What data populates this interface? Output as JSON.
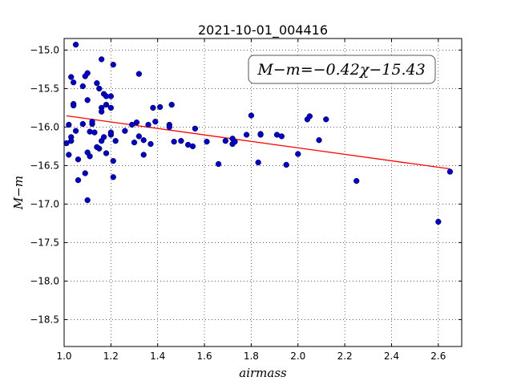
{
  "chart_data": {
    "type": "scatter",
    "title": "2021-10-01_004416",
    "xlabel": "airmass",
    "ylabel": "M−m",
    "xlim": [
      1.0,
      2.7
    ],
    "ylim": [
      -18.85,
      -14.85
    ],
    "y_inverted": true,
    "grid": true,
    "x_ticks": [
      "1.0",
      "1.2",
      "1.4",
      "1.6",
      "1.8",
      "2.0",
      "2.2",
      "2.4",
      "2.6"
    ],
    "x_tick_values": [
      1.0,
      1.2,
      1.4,
      1.6,
      1.8,
      2.0,
      2.2,
      2.4,
      2.6
    ],
    "y_ticks": [
      "−15.0",
      "−15.5",
      "−16.0",
      "−16.5",
      "−17.0",
      "−17.5",
      "−18.0",
      "−18.5"
    ],
    "y_tick_values": [
      -15.0,
      -15.5,
      -16.0,
      -16.5,
      -17.0,
      -17.5,
      -18.0,
      -18.5
    ],
    "annotation": "M−m=−0.42χ−15.43",
    "fit": {
      "slope": -0.42,
      "intercept": -15.43,
      "color": "#ff0000"
    },
    "marker_color": "#0000cc",
    "points": [
      [
        1.01,
        -16.21
      ],
      [
        1.02,
        -16.36
      ],
      [
        1.02,
        -15.97
      ],
      [
        1.03,
        -16.13
      ],
      [
        1.03,
        -16.18
      ],
      [
        1.03,
        -15.35
      ],
      [
        1.04,
        -15.42
      ],
      [
        1.04,
        -15.7
      ],
      [
        1.04,
        -15.72
      ],
      [
        1.05,
        -14.93
      ],
      [
        1.05,
        -16.05
      ],
      [
        1.06,
        -16.42
      ],
      [
        1.06,
        -16.69
      ],
      [
        1.08,
        -15.96
      ],
      [
        1.08,
        -15.47
      ],
      [
        1.09,
        -16.6
      ],
      [
        1.09,
        -15.34
      ],
      [
        1.1,
        -15.3
      ],
      [
        1.1,
        -16.95
      ],
      [
        1.1,
        -15.65
      ],
      [
        1.1,
        -16.33
      ],
      [
        1.11,
        -16.06
      ],
      [
        1.11,
        -16.38
      ],
      [
        1.12,
        -15.96
      ],
      [
        1.12,
        -15.93
      ],
      [
        1.13,
        -16.07
      ],
      [
        1.14,
        -15.43
      ],
      [
        1.14,
        -16.26
      ],
      [
        1.15,
        -15.5
      ],
      [
        1.15,
        -16.28
      ],
      [
        1.16,
        -15.12
      ],
      [
        1.16,
        -15.75
      ],
      [
        1.16,
        -15.8
      ],
      [
        1.16,
        -16.18
      ],
      [
        1.17,
        -16.13
      ],
      [
        1.17,
        -15.57
      ],
      [
        1.18,
        -15.6
      ],
      [
        1.18,
        -16.34
      ],
      [
        1.18,
        -15.71
      ],
      [
        1.2,
        -15.6
      ],
      [
        1.2,
        -15.75
      ],
      [
        1.2,
        -16.1
      ],
      [
        1.2,
        -16.07
      ],
      [
        1.21,
        -16.44
      ],
      [
        1.21,
        -15.19
      ],
      [
        1.21,
        -16.65
      ],
      [
        1.22,
        -16.18
      ],
      [
        1.26,
        -16.05
      ],
      [
        1.29,
        -15.97
      ],
      [
        1.3,
        -16.2
      ],
      [
        1.31,
        -15.94
      ],
      [
        1.32,
        -15.31
      ],
      [
        1.32,
        -16.12
      ],
      [
        1.34,
        -16.17
      ],
      [
        1.34,
        -16.36
      ],
      [
        1.36,
        -15.97
      ],
      [
        1.37,
        -16.22
      ],
      [
        1.38,
        -15.75
      ],
      [
        1.39,
        -15.93
      ],
      [
        1.41,
        -15.74
      ],
      [
        1.45,
        -15.97
      ],
      [
        1.45,
        -16.0
      ],
      [
        1.46,
        -15.71
      ],
      [
        1.47,
        -16.19
      ],
      [
        1.5,
        -16.18
      ],
      [
        1.53,
        -16.23
      ],
      [
        1.55,
        -16.25
      ],
      [
        1.56,
        -16.02
      ],
      [
        1.61,
        -16.19
      ],
      [
        1.66,
        -16.48
      ],
      [
        1.69,
        -16.18
      ],
      [
        1.72,
        -16.15
      ],
      [
        1.72,
        -16.22
      ],
      [
        1.73,
        -16.19
      ],
      [
        1.78,
        -16.1
      ],
      [
        1.8,
        -15.85
      ],
      [
        1.83,
        -16.46
      ],
      [
        1.84,
        -16.09
      ],
      [
        1.84,
        -16.1
      ],
      [
        1.91,
        -16.1
      ],
      [
        1.93,
        -16.12
      ],
      [
        1.95,
        -16.49
      ],
      [
        2.0,
        -16.35
      ],
      [
        2.04,
        -15.9
      ],
      [
        2.05,
        -15.86
      ],
      [
        2.09,
        -16.17
      ],
      [
        2.12,
        -15.9
      ],
      [
        2.25,
        -16.7
      ],
      [
        2.6,
        -17.23
      ],
      [
        2.65,
        -16.58
      ]
    ]
  }
}
